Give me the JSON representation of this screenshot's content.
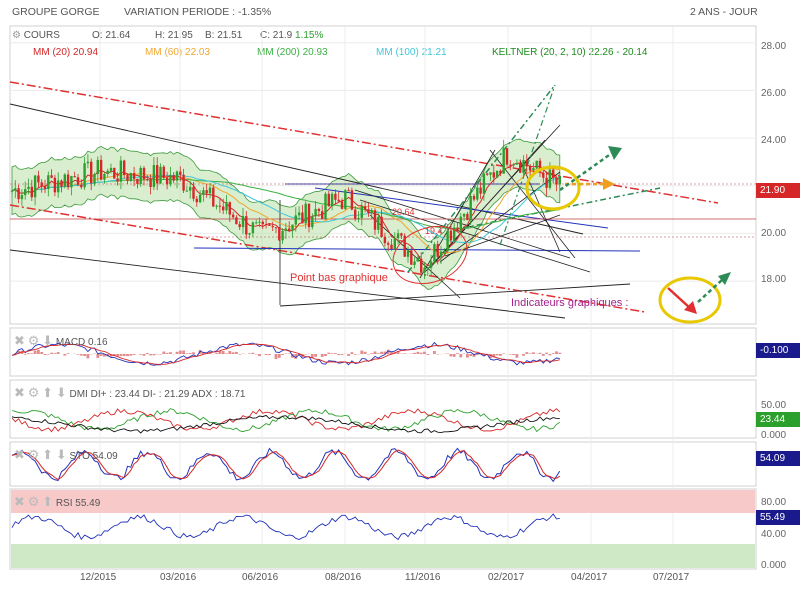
{
  "header": {
    "title": "GROUPE GORGE",
    "variation": "VARIATION PERIODE : -1.35%",
    "period": "2 ANS - JOUR"
  },
  "legend": {
    "cours": "COURS",
    "o": "O: 21.64",
    "h": "H: 21.95",
    "b": "B: 21.51",
    "c": "C: 21.9",
    "c_var": "1.15%",
    "mm20": "MM (20)",
    "mm20_val": "20.94",
    "mm60": "MM (60)",
    "mm60_val": "22.03",
    "mm200": "MM (200)",
    "mm200_val": "20.93",
    "mm100": "MM (100)",
    "mm100_val": "21.21",
    "keltner": "KELTNER (20, 2, 10)",
    "keltner_val": "22.26 - 20.14"
  },
  "colors": {
    "up": "#2ca02c",
    "down": "#d62728",
    "mm20": "#d62728",
    "mm60": "#f0a830",
    "mm200": "#3cb043",
    "mm100": "#40c8d8",
    "keltner": "#1e8c1e",
    "annotation_red": "#e03030",
    "annotation_purple": "#a0208c",
    "circle_yellow": "#e8c800",
    "arrow_orange": "#f0a020",
    "arrow_green": "#2e8b57"
  },
  "main_axis": {
    "ticks": [
      "28.00",
      "26.00",
      "24.00",
      "22.00",
      "20.00",
      "18.00"
    ],
    "last_price": "21.90"
  },
  "x_axis": {
    "ticks": [
      "12/2015",
      "03/2016",
      "06/2016",
      "08/2016",
      "11/2016",
      "02/2017",
      "04/2017",
      "07/2017"
    ]
  },
  "annotations": {
    "point_bas": "Point bas graphique",
    "indicateurs": "Indicateurs graphiques :",
    "level1": "20.64",
    "level2": "19.4"
  },
  "macd": {
    "label": "MACD",
    "value": "0.16",
    "tag": "-0.100"
  },
  "dmi": {
    "label": "DMI",
    "di_plus": "DI+ : 23.44",
    "di_minus": "DI- : 21.29",
    "adx": "ADX : 18.71",
    "ticks": [
      "50.00",
      "25.00",
      "0.000"
    ],
    "tag": "23.44"
  },
  "sto": {
    "label": "STO",
    "value": "54.09",
    "tag": "54.09"
  },
  "rsi": {
    "label": "RSI",
    "value": "55.49",
    "ticks": [
      "80.00",
      "40.00",
      "0.000"
    ],
    "tag": "55.49"
  },
  "chart_data": {
    "type": "line",
    "title": "GROUPE GORGE",
    "xlabel": "",
    "ylabel": "",
    "ylim": [
      16.2,
      28.7
    ],
    "x": [
      "12/2015",
      "03/2016",
      "06/2016",
      "08/2016",
      "11/2016",
      "02/2017",
      "04/2017"
    ],
    "series": [
      {
        "name": "COURS",
        "values": [
          22.6,
          22.3,
          19.9,
          21.5,
          18.7,
          23.4,
          21.9
        ]
      }
    ],
    "last_value": 21.9,
    "grid": true
  }
}
